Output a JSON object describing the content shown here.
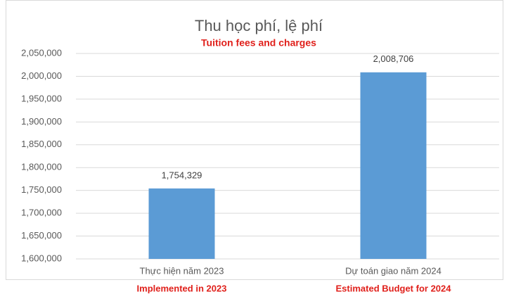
{
  "chart_data": {
    "type": "bar",
    "title": "Thu học phí, lệ phí",
    "subtitle": "Tuition fees and charges",
    "categories": [
      "Thực hiện năm 2023",
      "Dự toán giao năm 2024"
    ],
    "category_translations": [
      "Implemented in 2023",
      "Estimated Budget for 2024"
    ],
    "values": [
      1754329,
      2008706
    ],
    "value_labels": [
      "1,754,329",
      "2,008,706"
    ],
    "color": "#5b9bd5",
    "ylim": [
      1600000,
      2050000
    ],
    "yticks": [
      {
        "value": 1600000,
        "label": "1,600,000"
      },
      {
        "value": 1650000,
        "label": "1,650,000"
      },
      {
        "value": 1700000,
        "label": "1,700,000"
      },
      {
        "value": 1750000,
        "label": "1,750,000"
      },
      {
        "value": 1800000,
        "label": "1,800,000"
      },
      {
        "value": 1850000,
        "label": "1,850,000"
      },
      {
        "value": 1900000,
        "label": "1,900,000"
      },
      {
        "value": 1950000,
        "label": "1,950,000"
      },
      {
        "value": 2000000,
        "label": "2,000,000"
      },
      {
        "value": 2050000,
        "label": "2,050,000"
      }
    ],
    "grid": true
  }
}
